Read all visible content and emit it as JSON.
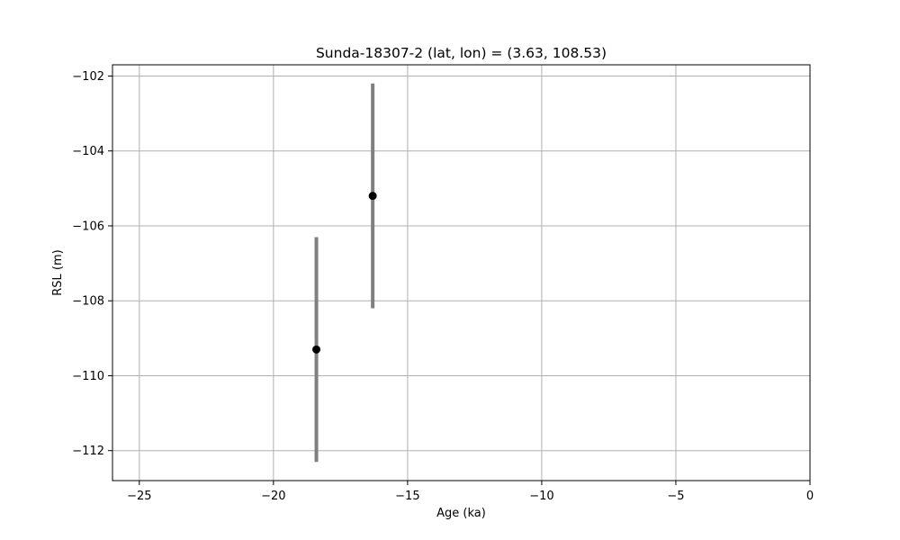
{
  "chart_data": {
    "type": "scatter",
    "title": "Sunda-18307-2 (lat, lon) = (3.63, 108.53)",
    "xlabel": "Age (ka)",
    "ylabel": "RSL (m)",
    "xlim": [
      -26,
      0
    ],
    "ylim": [
      -112.8,
      -101.7
    ],
    "xticks": [
      -25,
      -20,
      -15,
      -10,
      -5,
      0
    ],
    "yticks": [
      -112,
      -110,
      -108,
      -106,
      -104,
      -102
    ],
    "grid": true,
    "point_color": "#000000",
    "errorbar_color": "#808080",
    "points": [
      {
        "x": -18.4,
        "y": -109.3,
        "ylow": -112.3,
        "yhigh": -106.3
      },
      {
        "x": -16.3,
        "y": -105.2,
        "ylow": -108.2,
        "yhigh": -102.2
      }
    ]
  }
}
